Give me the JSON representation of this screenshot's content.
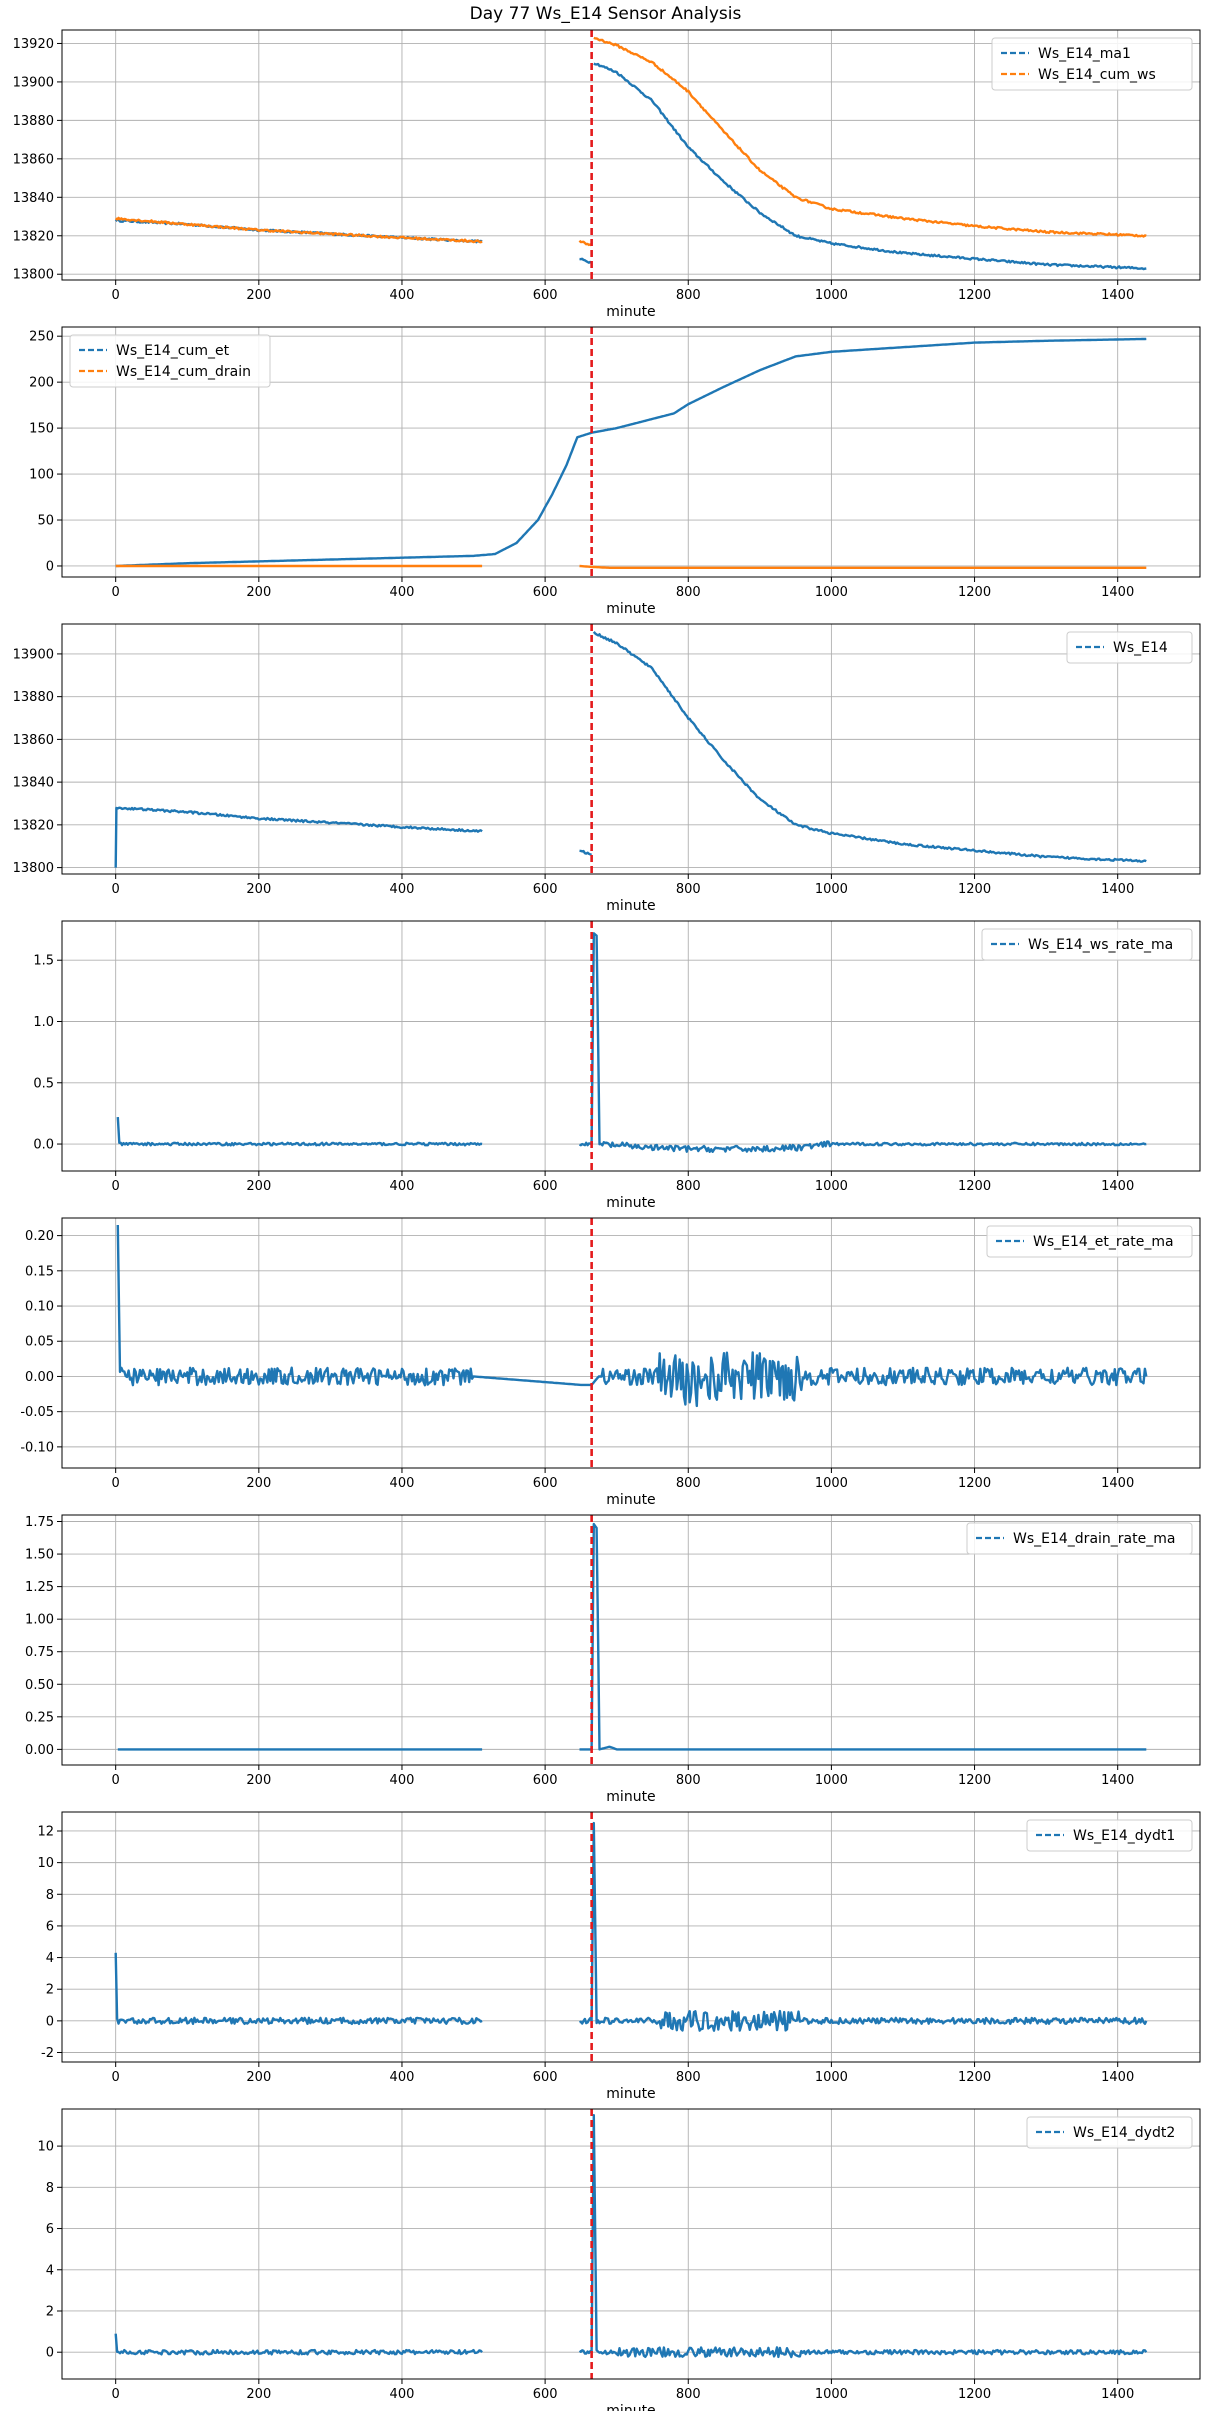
{
  "title": "Day 77 Ws_E14 Sensor Analysis",
  "colors": {
    "blue": "#1f77b4",
    "orange": "#ff7f0e",
    "event": "#e41a1c",
    "grid": "#b0b0b0"
  },
  "chart_data": [
    {
      "type": "line",
      "xlabel": "minute",
      "xlim": [
        -75,
        1515
      ],
      "ylim": [
        13797,
        13927
      ],
      "xticks": [
        0,
        200,
        400,
        600,
        800,
        1000,
        1200,
        1400
      ],
      "yticks": [
        13800,
        13820,
        13840,
        13860,
        13880,
        13900,
        13920
      ],
      "legend_position": "top-right",
      "event_line_x": 665,
      "series": [
        {
          "name": "Ws_E14_ma1",
          "color": "#1f77b4",
          "segments": [
            [
              [
                0,
                13828
              ],
              [
                100,
                13826
              ],
              [
                200,
                13823
              ],
              [
                300,
                13821
              ],
              [
                400,
                13819
              ],
              [
                512,
                13817
              ]
            ],
            [
              [
                648,
                13808
              ],
              [
                665,
                13806
              ]
            ],
            [
              [
                668,
                13910
              ],
              [
                700,
                13905
              ],
              [
                750,
                13890
              ],
              [
                800,
                13866
              ],
              [
                850,
                13848
              ],
              [
                900,
                13832
              ],
              [
                950,
                13820
              ],
              [
                1000,
                13816
              ],
              [
                1100,
                13811
              ],
              [
                1200,
                13808
              ],
              [
                1300,
                13805
              ],
              [
                1440,
                13803
              ]
            ]
          ]
        },
        {
          "name": "Ws_E14_cum_ws",
          "color": "#ff7f0e",
          "segments": [
            [
              [
                0,
                13829
              ],
              [
                100,
                13826
              ],
              [
                200,
                13823
              ],
              [
                300,
                13821
              ],
              [
                400,
                13819
              ],
              [
                512,
                13817
              ]
            ],
            [
              [
                648,
                13817
              ],
              [
                665,
                13815
              ]
            ],
            [
              [
                668,
                13923
              ],
              [
                700,
                13919
              ],
              [
                750,
                13910
              ],
              [
                800,
                13895
              ],
              [
                850,
                13874
              ],
              [
                900,
                13854
              ],
              [
                950,
                13840
              ],
              [
                1000,
                13834
              ],
              [
                1100,
                13829
              ],
              [
                1200,
                13825
              ],
              [
                1300,
                13822
              ],
              [
                1440,
                13820
              ]
            ]
          ]
        }
      ]
    },
    {
      "type": "line",
      "xlabel": "minute",
      "xlim": [
        -75,
        1515
      ],
      "ylim": [
        -12,
        260
      ],
      "xticks": [
        0,
        200,
        400,
        600,
        800,
        1000,
        1200,
        1400
      ],
      "yticks": [
        0,
        50,
        100,
        150,
        200,
        250
      ],
      "legend_position": "top-left",
      "event_line_x": 665,
      "series": [
        {
          "name": "Ws_E14_cum_et",
          "color": "#1f77b4",
          "segments": [
            [
              [
                0,
                0
              ],
              [
                100,
                3
              ],
              [
                200,
                5
              ],
              [
                300,
                7
              ],
              [
                400,
                9
              ],
              [
                500,
                11
              ],
              [
                530,
                13
              ],
              [
                560,
                25
              ],
              [
                590,
                50
              ],
              [
                610,
                78
              ],
              [
                630,
                110
              ],
              [
                645,
                140
              ],
              [
                665,
                145
              ],
              [
                700,
                150
              ],
              [
                750,
                160
              ],
              [
                780,
                166
              ],
              [
                800,
                176
              ],
              [
                850,
                195
              ],
              [
                900,
                213
              ],
              [
                950,
                228
              ],
              [
                1000,
                233
              ],
              [
                1100,
                238
              ],
              [
                1200,
                243
              ],
              [
                1300,
                245
              ],
              [
                1440,
                247
              ]
            ]
          ]
        },
        {
          "name": "Ws_E14_cum_drain",
          "color": "#ff7f0e",
          "segments": [
            [
              [
                0,
                0
              ],
              [
                512,
                0
              ]
            ],
            [
              [
                648,
                0
              ],
              [
                665,
                -1
              ],
              [
                690,
                -2
              ],
              [
                1440,
                -2
              ]
            ]
          ]
        }
      ]
    },
    {
      "type": "line",
      "xlabel": "minute",
      "xlim": [
        -75,
        1515
      ],
      "ylim": [
        13797,
        13914
      ],
      "xticks": [
        0,
        200,
        400,
        600,
        800,
        1000,
        1200,
        1400
      ],
      "yticks": [
        13800,
        13820,
        13840,
        13860,
        13880,
        13900
      ],
      "legend_position": "top-right",
      "event_line_x": 665,
      "series": [
        {
          "name": "Ws_E14",
          "color": "#1f77b4",
          "segments": [
            [
              [
                0,
                13800
              ],
              [
                1,
                13828
              ],
              [
                100,
                13826
              ],
              [
                200,
                13823
              ],
              [
                300,
                13821
              ],
              [
                400,
                13819
              ],
              [
                512,
                13817
              ]
            ],
            [
              [
                648,
                13808
              ],
              [
                665,
                13806
              ]
            ],
            [
              [
                668,
                13910
              ],
              [
                700,
                13905
              ],
              [
                750,
                13893
              ],
              [
                800,
                13870
              ],
              [
                850,
                13850
              ],
              [
                900,
                13832
              ],
              [
                950,
                13820
              ],
              [
                1000,
                13816
              ],
              [
                1100,
                13811
              ],
              [
                1200,
                13808
              ],
              [
                1300,
                13805
              ],
              [
                1440,
                13803
              ]
            ]
          ]
        }
      ]
    },
    {
      "type": "line",
      "xlabel": "minute",
      "xlim": [
        -75,
        1515
      ],
      "ylim": [
        -0.22,
        1.82
      ],
      "xticks": [
        0,
        200,
        400,
        600,
        800,
        1000,
        1200,
        1400
      ],
      "yticks": [
        0.0,
        0.5,
        1.0,
        1.5
      ],
      "legend_position": "top-right",
      "event_line_x": 665,
      "series": [
        {
          "name": "Ws_E14_ws_rate_ma",
          "color": "#1f77b4",
          "segments": [
            [
              [
                3,
                0.22
              ],
              [
                5,
                0
              ],
              [
                512,
                0
              ]
            ],
            [
              [
                648,
                0
              ],
              [
                665,
                0
              ],
              [
                668,
                1.72
              ],
              [
                672,
                1.7
              ],
              [
                676,
                0
              ],
              [
                750,
                -0.03
              ],
              [
                800,
                -0.04
              ],
              [
                900,
                -0.04
              ],
              [
                950,
                -0.03
              ],
              [
                1000,
                0
              ],
              [
                1440,
                0
              ]
            ]
          ]
        }
      ]
    },
    {
      "type": "line",
      "xlabel": "minute",
      "xlim": [
        -75,
        1515
      ],
      "ylim": [
        -0.13,
        0.225
      ],
      "xticks": [
        0,
        200,
        400,
        600,
        800,
        1000,
        1200,
        1400
      ],
      "yticks": [
        -0.1,
        -0.05,
        0.0,
        0.05,
        0.1,
        0.15,
        0.2
      ],
      "legend_position": "top-right",
      "event_line_x": 665,
      "series": [
        {
          "name": "Ws_E14_et_rate_ma",
          "color": "#1f77b4",
          "segments": [
            [
              [
                3,
                0.215
              ],
              [
                6,
                0
              ],
              [
                500,
                0
              ],
              [
                650,
                -0.012
              ],
              [
                665,
                -0.012
              ],
              [
                675,
                0
              ],
              [
                770,
                0
              ],
              [
                800,
                -0.01
              ],
              [
                850,
                0
              ],
              [
                1000,
                0
              ],
              [
                1440,
                0
              ]
            ]
          ]
        }
      ]
    },
    {
      "type": "line",
      "xlabel": "minute",
      "xlim": [
        -75,
        1515
      ],
      "ylim": [
        -0.12,
        1.8
      ],
      "xticks": [
        0,
        200,
        400,
        600,
        800,
        1000,
        1200,
        1400
      ],
      "yticks": [
        0.0,
        0.25,
        0.5,
        0.75,
        1.0,
        1.25,
        1.5,
        1.75
      ],
      "legend_position": "top-right",
      "event_line_x": 665,
      "series": [
        {
          "name": "Ws_E14_drain_rate_ma",
          "color": "#1f77b4",
          "segments": [
            [
              [
                3,
                0
              ],
              [
                512,
                0
              ]
            ],
            [
              [
                648,
                0
              ],
              [
                665,
                0
              ],
              [
                668,
                1.73
              ],
              [
                672,
                1.7
              ],
              [
                676,
                0
              ],
              [
                690,
                0.02
              ],
              [
                700,
                0
              ],
              [
                1440,
                0
              ]
            ]
          ]
        }
      ]
    },
    {
      "type": "line",
      "xlabel": "minute",
      "xlim": [
        -75,
        1515
      ],
      "ylim": [
        -2.6,
        13.2
      ],
      "xticks": [
        0,
        200,
        400,
        600,
        800,
        1000,
        1200,
        1400
      ],
      "yticks": [
        -2,
        0,
        2,
        4,
        6,
        8,
        10,
        12
      ],
      "legend_position": "top-right",
      "event_line_x": 665,
      "series": [
        {
          "name": "Ws_E14_dydt1",
          "color": "#1f77b4",
          "segments": [
            [
              [
                0,
                4.3
              ],
              [
                2,
                0
              ],
              [
                512,
                0
              ]
            ],
            [
              [
                648,
                0
              ],
              [
                665,
                0
              ],
              [
                668,
                12.5
              ],
              [
                672,
                0
              ],
              [
                1440,
                0
              ]
            ]
          ]
        }
      ]
    },
    {
      "type": "line",
      "xlabel": "minute",
      "xlim": [
        -75,
        1515
      ],
      "ylim": [
        -1.3,
        11.8
      ],
      "xticks": [
        0,
        200,
        400,
        600,
        800,
        1000,
        1200,
        1400
      ],
      "yticks": [
        0,
        2,
        4,
        6,
        8,
        10
      ],
      "legend_position": "top-right",
      "event_line_x": 665,
      "series": [
        {
          "name": "Ws_E14_dydt2",
          "color": "#1f77b4",
          "segments": [
            [
              [
                0,
                0.9
              ],
              [
                2,
                0
              ],
              [
                512,
                0
              ]
            ],
            [
              [
                648,
                0
              ],
              [
                665,
                0
              ],
              [
                668,
                11.5
              ],
              [
                672,
                0
              ],
              [
                1440,
                0
              ]
            ]
          ]
        }
      ]
    }
  ]
}
